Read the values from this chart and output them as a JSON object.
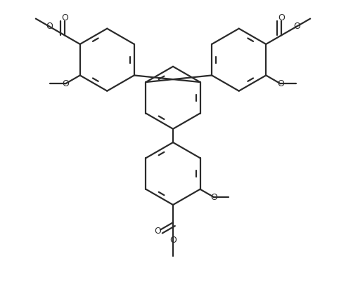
{
  "bg_color": "#ffffff",
  "line_color": "#2a2a2a",
  "line_width": 1.6,
  "dbo": 0.038,
  "r": 0.3,
  "bl": 0.42,
  "fs": 9.0,
  "figsize": [
    4.92,
    4.12
  ],
  "dpi": 100,
  "xlim": [
    -1.65,
    1.65
  ],
  "ylim": [
    -1.55,
    1.05
  ]
}
